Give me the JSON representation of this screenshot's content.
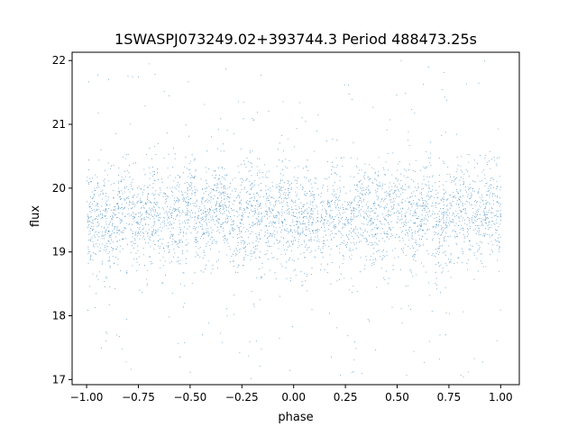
{
  "chart_data": {
    "type": "scatter",
    "title": "1SWASPJ073249.02+393744.3 Period 488473.25s",
    "xlabel": "phase",
    "ylabel": "flux",
    "xlim": [
      -1.07,
      1.09
    ],
    "ylim": [
      16.92,
      22.13
    ],
    "xticks": [
      -1.0,
      -0.75,
      -0.5,
      -0.25,
      0.0,
      0.25,
      0.5,
      0.75,
      1.0
    ],
    "xtick_labels": [
      "−1.00",
      "−0.75",
      "−0.50",
      "−0.25",
      "0.00",
      "0.25",
      "0.50",
      "0.75",
      "1.00"
    ],
    "yticks": [
      17,
      18,
      19,
      20,
      21,
      22
    ],
    "ytick_labels": [
      "17",
      "18",
      "19",
      "20",
      "21",
      "22"
    ],
    "grid": false,
    "legend": "none",
    "marker_color": "#1f77b4",
    "series": [
      {
        "description_of_distribution": "dense band of points between flux ~18.8 and ~20.2 across phase -1.0 to 1.0, with quasi-periodic peaks up to ~20.6 and dips down to ~17.2",
        "x_range": [
          -1.0,
          1.0
        ],
        "y_center": 19.5,
        "y_spread": 0.4,
        "peaks_x": [
          -0.8,
          -0.68,
          -0.5,
          -0.35,
          -0.2,
          -0.05,
          0.2,
          0.32,
          0.5,
          0.65,
          0.8,
          0.95
        ],
        "dips_x": [
          -0.88,
          -0.75,
          -0.28,
          0.12,
          0.22,
          0.7
        ],
        "n_points": 9000
      }
    ]
  }
}
